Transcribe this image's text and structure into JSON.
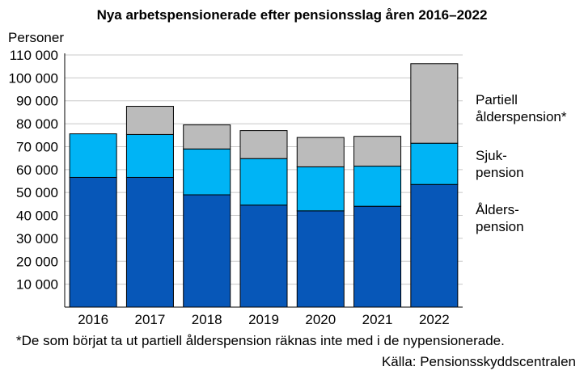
{
  "chart_data": {
    "type": "bar",
    "stacked": true,
    "title": "Nya arbetspensionerade efter pensionsslag åren 2016–2022",
    "ylabel": "Personer",
    "xlabel": "",
    "ylim": [
      0,
      110000
    ],
    "yticks": [
      10000,
      20000,
      30000,
      40000,
      50000,
      60000,
      70000,
      80000,
      90000,
      100000,
      110000
    ],
    "ytick_labels": [
      "10 000",
      "20 000",
      "30 000",
      "40 000",
      "50 000",
      "60 000",
      "70 000",
      "80 000",
      "90 000",
      "100 000",
      "110 000"
    ],
    "grid": true,
    "categories": [
      "2016",
      "2017",
      "2018",
      "2019",
      "2020",
      "2021",
      "2022"
    ],
    "series": [
      {
        "name": "Ålderspension",
        "legend_lines": [
          "Ålders-",
          "pension"
        ],
        "color": "#0757b8",
        "values": [
          56600,
          56600,
          49000,
          44500,
          42000,
          44000,
          53500
        ]
      },
      {
        "name": "Sjukpension",
        "legend_lines": [
          "Sjuk-",
          "pension"
        ],
        "color": "#00b4f5",
        "values": [
          19000,
          18700,
          20000,
          20300,
          19200,
          17500,
          18000
        ]
      },
      {
        "name": "Partiell ålderspension*",
        "legend_lines": [
          "Partiell",
          "ålderspension*"
        ],
        "color": "#bbbbbb",
        "values": [
          0,
          12300,
          10500,
          12200,
          12800,
          13000,
          34700
        ]
      }
    ],
    "legend": "right",
    "note": "*De som börjat ta ut partiell ålderspension räknas inte med i de nypensionerade.",
    "source": "Källa: Pensionsskyddscentralen"
  }
}
